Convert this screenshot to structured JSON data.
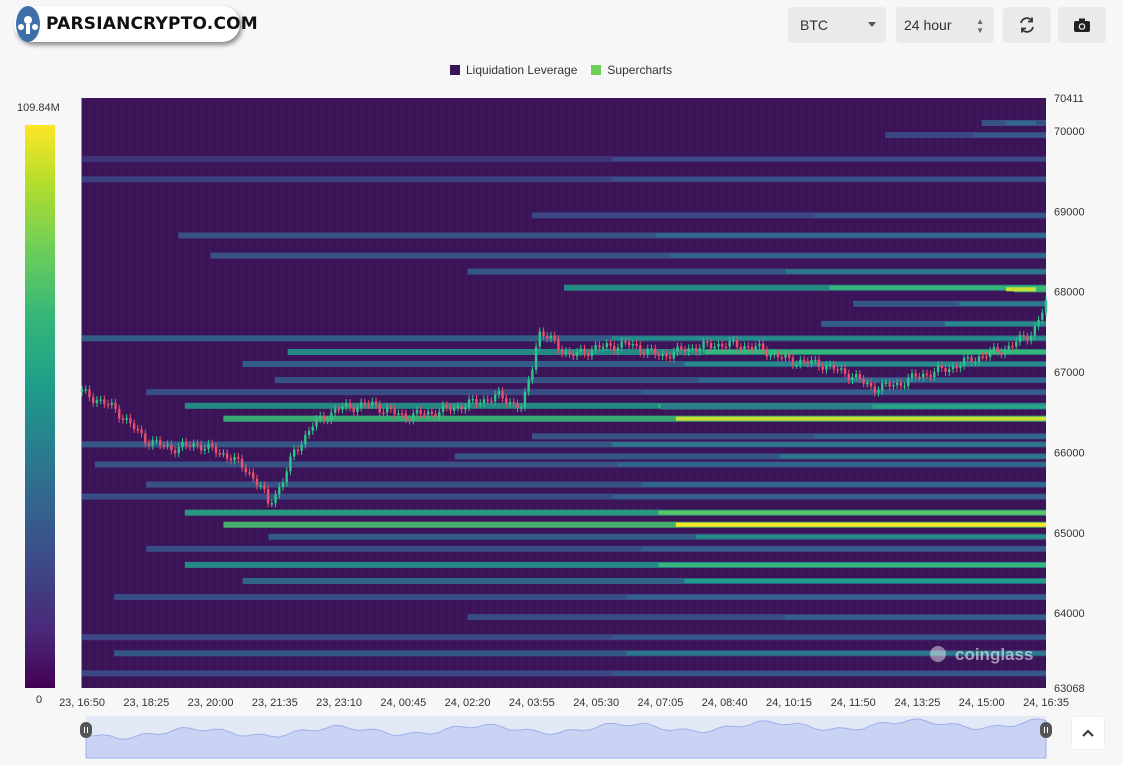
{
  "header": {
    "brand": "PARSIANCRYPTO.COM",
    "symbol_select": "BTC",
    "range_select": "24 hour",
    "refresh_icon": "refresh-icon",
    "camera_icon": "camera-icon"
  },
  "legend": {
    "items": [
      {
        "label": "Liquidation Leverage",
        "color": "#440154"
      },
      {
        "label": "Supercharts",
        "color": "#6ece58"
      }
    ]
  },
  "colorbar": {
    "max_label": "109.84M",
    "min_label": "0"
  },
  "watermark": "coinglass",
  "chart_data": {
    "type": "heatmap",
    "title": "",
    "y_axis": {
      "min": 63068,
      "max": 70411,
      "ticks": [
        "70411",
        "70000",
        "69000",
        "68000",
        "67000",
        "66000",
        "65000",
        "64000",
        "63068"
      ]
    },
    "x_axis": {
      "ticks": [
        "23, 16:50",
        "23, 18:25",
        "23, 20:00",
        "23, 21:35",
        "23, 23:10",
        "24, 00:45",
        "24, 02:20",
        "24, 03:55",
        "24, 05:30",
        "24, 07:05",
        "24, 08:40",
        "24, 10:15",
        "24, 11:50",
        "24, 13:25",
        "24, 15:00",
        "24, 16:35"
      ]
    },
    "color_range": [
      0,
      109.84
    ],
    "price_series": [
      {
        "t": 0.0,
        "p": 66750
      },
      {
        "t": 0.5,
        "p": 66550
      },
      {
        "t": 1.0,
        "p": 66150
      },
      {
        "t": 1.4,
        "p": 66050
      },
      {
        "t": 1.8,
        "p": 66100
      },
      {
        "t": 2.3,
        "p": 65950
      },
      {
        "t": 2.6,
        "p": 65750
      },
      {
        "t": 2.8,
        "p": 65550
      },
      {
        "t": 2.9,
        "p": 65350
      },
      {
        "t": 3.1,
        "p": 65600
      },
      {
        "t": 3.3,
        "p": 66000
      },
      {
        "t": 3.6,
        "p": 66350
      },
      {
        "t": 4.0,
        "p": 66550
      },
      {
        "t": 4.5,
        "p": 66600
      },
      {
        "t": 5.0,
        "p": 66450
      },
      {
        "t": 5.5,
        "p": 66500
      },
      {
        "t": 6.0,
        "p": 66600
      },
      {
        "t": 6.5,
        "p": 66700
      },
      {
        "t": 6.85,
        "p": 66550
      },
      {
        "t": 7.0,
        "p": 67050
      },
      {
        "t": 7.1,
        "p": 67500
      },
      {
        "t": 7.3,
        "p": 67400
      },
      {
        "t": 7.6,
        "p": 67200
      },
      {
        "t": 8.0,
        "p": 67300
      },
      {
        "t": 8.5,
        "p": 67350
      },
      {
        "t": 9.0,
        "p": 67200
      },
      {
        "t": 9.5,
        "p": 67300
      },
      {
        "t": 10.0,
        "p": 67350
      },
      {
        "t": 10.5,
        "p": 67300
      },
      {
        "t": 11.0,
        "p": 67150
      },
      {
        "t": 11.5,
        "p": 67100
      },
      {
        "t": 12.0,
        "p": 66950
      },
      {
        "t": 12.3,
        "p": 66800
      },
      {
        "t": 12.7,
        "p": 66850
      },
      {
        "t": 13.0,
        "p": 66950
      },
      {
        "t": 13.5,
        "p": 67050
      },
      {
        "t": 14.0,
        "p": 67200
      },
      {
        "t": 14.4,
        "p": 67300
      },
      {
        "t": 14.8,
        "p": 67500
      },
      {
        "t": 15.0,
        "p": 67850
      }
    ],
    "bands": [
      {
        "price": 70100,
        "t_start": 14.0,
        "intensity": 0.4
      },
      {
        "price": 69950,
        "t_start": 12.5,
        "intensity": 0.3
      },
      {
        "price": 69650,
        "t_start": 0.0,
        "intensity": 0.2
      },
      {
        "price": 69400,
        "t_start": 0.0,
        "intensity": 0.25
      },
      {
        "price": 68950,
        "t_start": 7.0,
        "intensity": 0.3
      },
      {
        "price": 68700,
        "t_start": 1.5,
        "intensity": 0.4
      },
      {
        "price": 68450,
        "t_start": 2.0,
        "intensity": 0.4
      },
      {
        "price": 68250,
        "t_start": 6.0,
        "intensity": 0.45
      },
      {
        "price": 68050,
        "t_start": 7.5,
        "intensity": 0.7
      },
      {
        "price": 68030,
        "t_start": 14.5,
        "intensity": 0.95
      },
      {
        "price": 67850,
        "t_start": 12.0,
        "intensity": 0.45
      },
      {
        "price": 67600,
        "t_start": 11.5,
        "intensity": 0.5
      },
      {
        "price": 67420,
        "t_start": 0.0,
        "intensity": 0.5
      },
      {
        "price": 67250,
        "t_start": 3.2,
        "intensity": 0.7
      },
      {
        "price": 67100,
        "t_start": 2.5,
        "intensity": 0.5
      },
      {
        "price": 66900,
        "t_start": 3.0,
        "intensity": 0.4
      },
      {
        "price": 66750,
        "t_start": 1.0,
        "intensity": 0.35
      },
      {
        "price": 66580,
        "t_start": 1.6,
        "intensity": 0.7
      },
      {
        "price": 66570,
        "t_start": 9.0,
        "intensity": 0.6
      },
      {
        "price": 66420,
        "t_start": 2.2,
        "intensity": 0.95
      },
      {
        "price": 66200,
        "t_start": 7.0,
        "intensity": 0.4
      },
      {
        "price": 66100,
        "t_start": 0.0,
        "intensity": 0.45
      },
      {
        "price": 65950,
        "t_start": 5.8,
        "intensity": 0.45
      },
      {
        "price": 65850,
        "t_start": 0.2,
        "intensity": 0.4
      },
      {
        "price": 65600,
        "t_start": 1.0,
        "intensity": 0.4
      },
      {
        "price": 65450,
        "t_start": 0.0,
        "intensity": 0.35
      },
      {
        "price": 65250,
        "t_start": 1.6,
        "intensity": 0.8
      },
      {
        "price": 65100,
        "t_start": 2.2,
        "intensity": 1.0
      },
      {
        "price": 64950,
        "t_start": 2.9,
        "intensity": 0.5
      },
      {
        "price": 64800,
        "t_start": 1.0,
        "intensity": 0.35
      },
      {
        "price": 64600,
        "t_start": 1.6,
        "intensity": 0.7
      },
      {
        "price": 64400,
        "t_start": 2.5,
        "intensity": 0.55
      },
      {
        "price": 64200,
        "t_start": 0.5,
        "intensity": 0.35
      },
      {
        "price": 63950,
        "t_start": 6.0,
        "intensity": 0.35
      },
      {
        "price": 63700,
        "t_start": 0.0,
        "intensity": 0.3
      },
      {
        "price": 63500,
        "t_start": 0.5,
        "intensity": 0.45
      },
      {
        "price": 63250,
        "t_start": 0.0,
        "intensity": 0.3
      }
    ]
  }
}
